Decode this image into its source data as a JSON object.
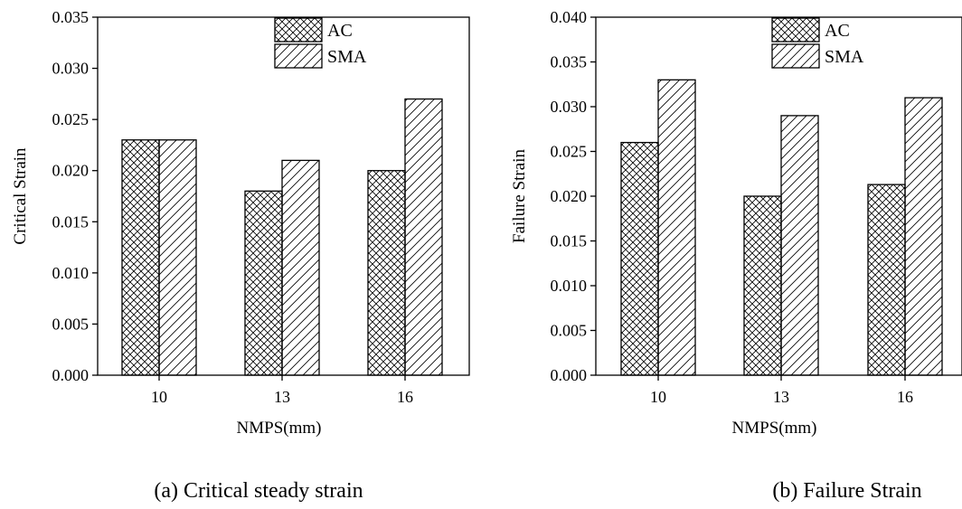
{
  "chart_data": [
    {
      "type": "bar",
      "caption": "(a) Critical steady strain",
      "title": "",
      "xlabel": "NMPS(mm)",
      "ylabel": "Critical Strain",
      "categories": [
        "10",
        "13",
        "16"
      ],
      "series": [
        {
          "name": "AC",
          "values": [
            0.023,
            0.018,
            0.02
          ]
        },
        {
          "name": "SMA",
          "values": [
            0.023,
            0.021,
            0.027
          ]
        }
      ],
      "ylim": [
        0,
        0.035
      ],
      "yticks": [
        "0.000",
        "0.005",
        "0.010",
        "0.015",
        "0.020",
        "0.025",
        "0.030",
        "0.035"
      ],
      "grid": false,
      "legend": "top-right"
    },
    {
      "type": "bar",
      "caption": "(b) Failure Strain",
      "title": "",
      "xlabel": "NMPS(mm)",
      "ylabel": "Failure Strain",
      "categories": [
        "10",
        "13",
        "16"
      ],
      "series": [
        {
          "name": "AC",
          "values": [
            0.026,
            0.02,
            0.0213
          ]
        },
        {
          "name": "SMA",
          "values": [
            0.033,
            0.029,
            0.031
          ]
        }
      ],
      "ylim": [
        0,
        0.04
      ],
      "yticks": [
        "0.000",
        "0.005",
        "0.010",
        "0.015",
        "0.020",
        "0.025",
        "0.030",
        "0.035",
        "0.040"
      ],
      "grid": false,
      "legend": "top-right"
    }
  ]
}
